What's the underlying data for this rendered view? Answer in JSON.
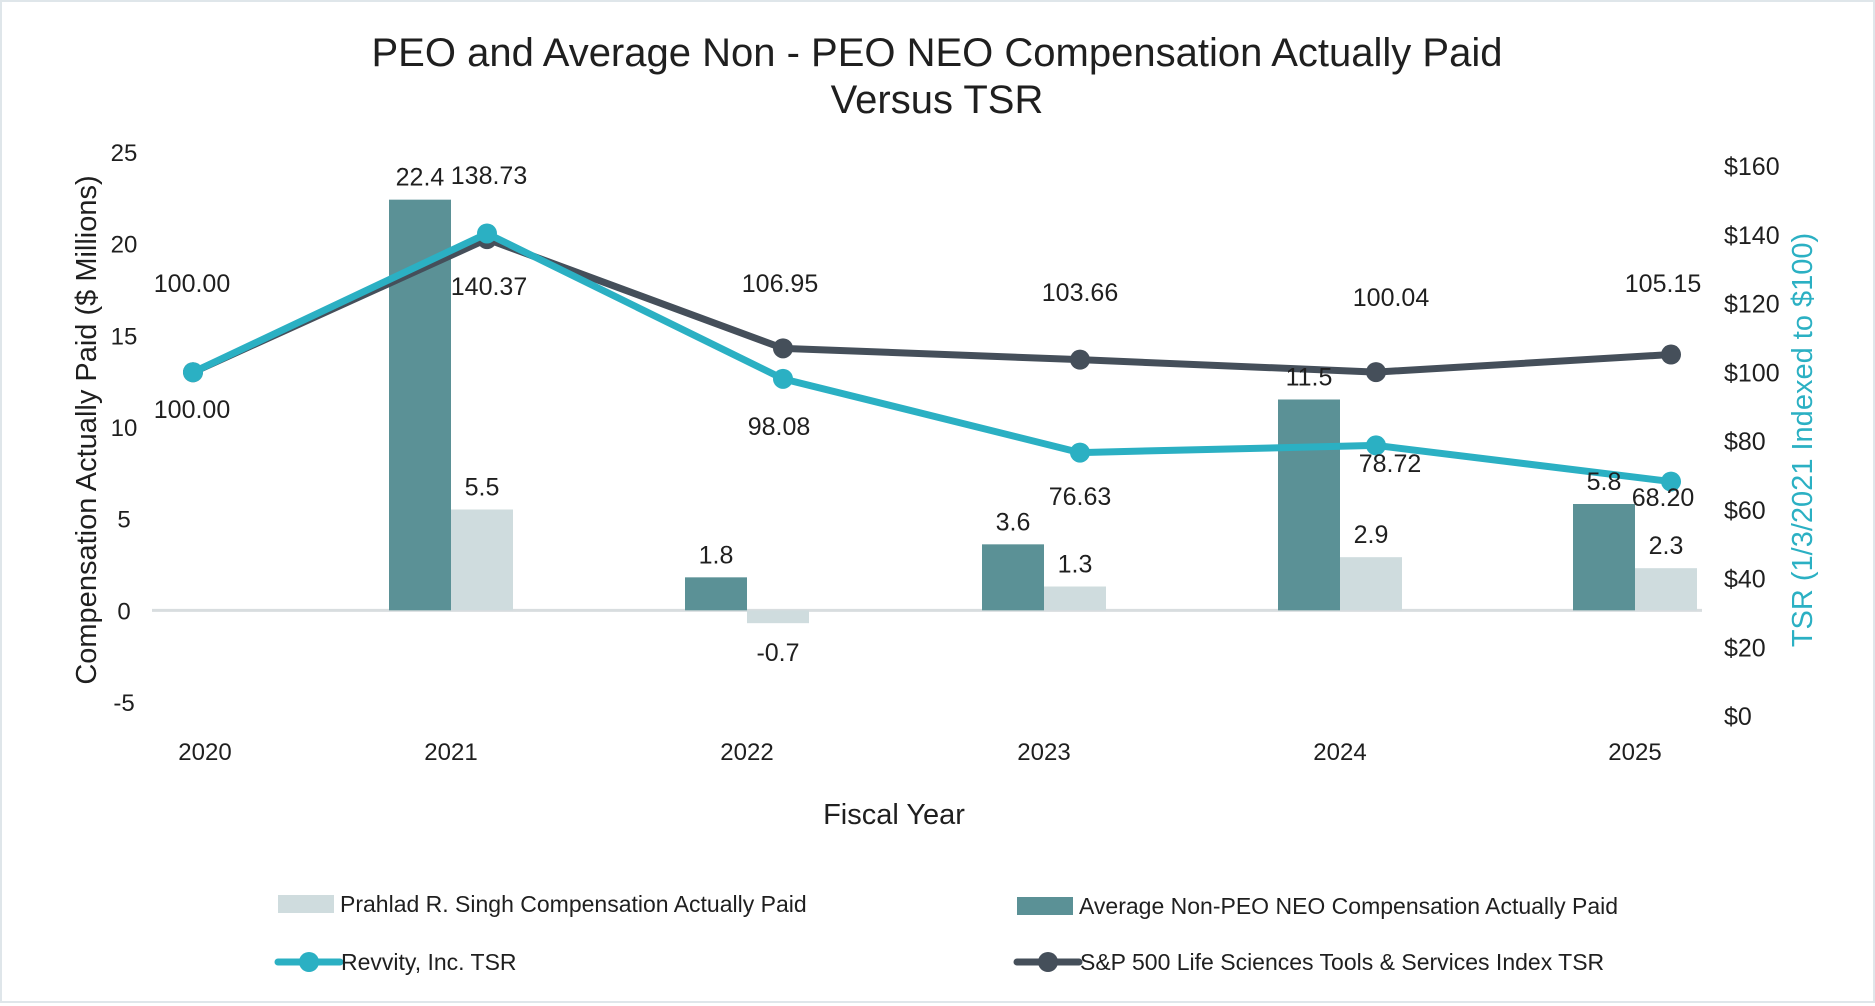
{
  "chart_data": {
    "type": "bar+line",
    "title_lines": [
      "PEO and Average Non - PEO NEO Compensation Actually Paid",
      "Versus TSR"
    ],
    "xlabel": "Fiscal Year",
    "ylabel_left": "Compensation Actually Paid ($ Millions)",
    "ylabel_right": "TSR (1/3/2021 Indexed to $100)",
    "categories": [
      "2020",
      "2021",
      "2022",
      "2023",
      "2024",
      "2025"
    ],
    "y_left": {
      "min": -5,
      "max": 25,
      "ticks": [
        25,
        20,
        15,
        10,
        5,
        0,
        -5
      ],
      "tick_labels": [
        "25",
        "20",
        "15",
        "10",
        "5",
        "0",
        "-5"
      ]
    },
    "y_right": {
      "min": 0,
      "max": 160,
      "ticks": [
        160,
        140,
        120,
        100,
        80,
        60,
        40,
        20,
        0
      ],
      "tick_labels": [
        "$160",
        "$140",
        "$120",
        "$100",
        "$80",
        "$60",
        "$40",
        "$20",
        "$0"
      ]
    },
    "bar_series": [
      {
        "name": "Average Non-PEO NEO Compensation Actually Paid",
        "color": "#5b9196",
        "values": [
          null,
          22.4,
          1.8,
          3.6,
          11.5,
          5.8
        ],
        "labels": [
          "",
          "22.4",
          "1.8",
          "3.6",
          "11.5",
          "5.8"
        ]
      },
      {
        "name": "Prahlad R. Singh Compensation Actually Paid",
        "color": "#cfdcde",
        "values": [
          null,
          5.5,
          -0.7,
          1.3,
          2.9,
          2.3
        ],
        "labels": [
          "",
          "5.5",
          "-0.7",
          "1.3",
          "2.9",
          "2.3"
        ]
      }
    ],
    "line_series": [
      {
        "name": "Revvity, Inc. TSR",
        "color": "#2bb0c3",
        "values": [
          100.0,
          140.37,
          98.08,
          76.63,
          78.72,
          68.2
        ],
        "labels": [
          "100.00",
          "140.37",
          "98.08",
          "76.63",
          "78.72",
          "68.20"
        ]
      },
      {
        "name": "S&P 500 Life Sciences Tools & Services Index TSR",
        "color": "#454f5a",
        "values": [
          100.0,
          138.73,
          106.95,
          103.66,
          100.04,
          105.15
        ],
        "labels": [
          "100.00",
          "138.73",
          "106.95",
          "103.66",
          "100.04",
          "105.15"
        ]
      }
    ],
    "legend": [
      {
        "label": "Prahlad R. Singh Compensation Actually Paid",
        "kind": "bar",
        "color": "#cfdcde"
      },
      {
        "label": "Average Non-PEO NEO Compensation Actually Paid",
        "kind": "bar",
        "color": "#5b9196"
      },
      {
        "label": "Revvity, Inc. TSR",
        "kind": "line",
        "color": "#2bb0c3"
      },
      {
        "label": "S&P 500 Life Sciences Tools & Services Index TSR",
        "kind": "line",
        "color": "#454f5a"
      }
    ],
    "grid": false,
    "legend_position": "bottom"
  }
}
